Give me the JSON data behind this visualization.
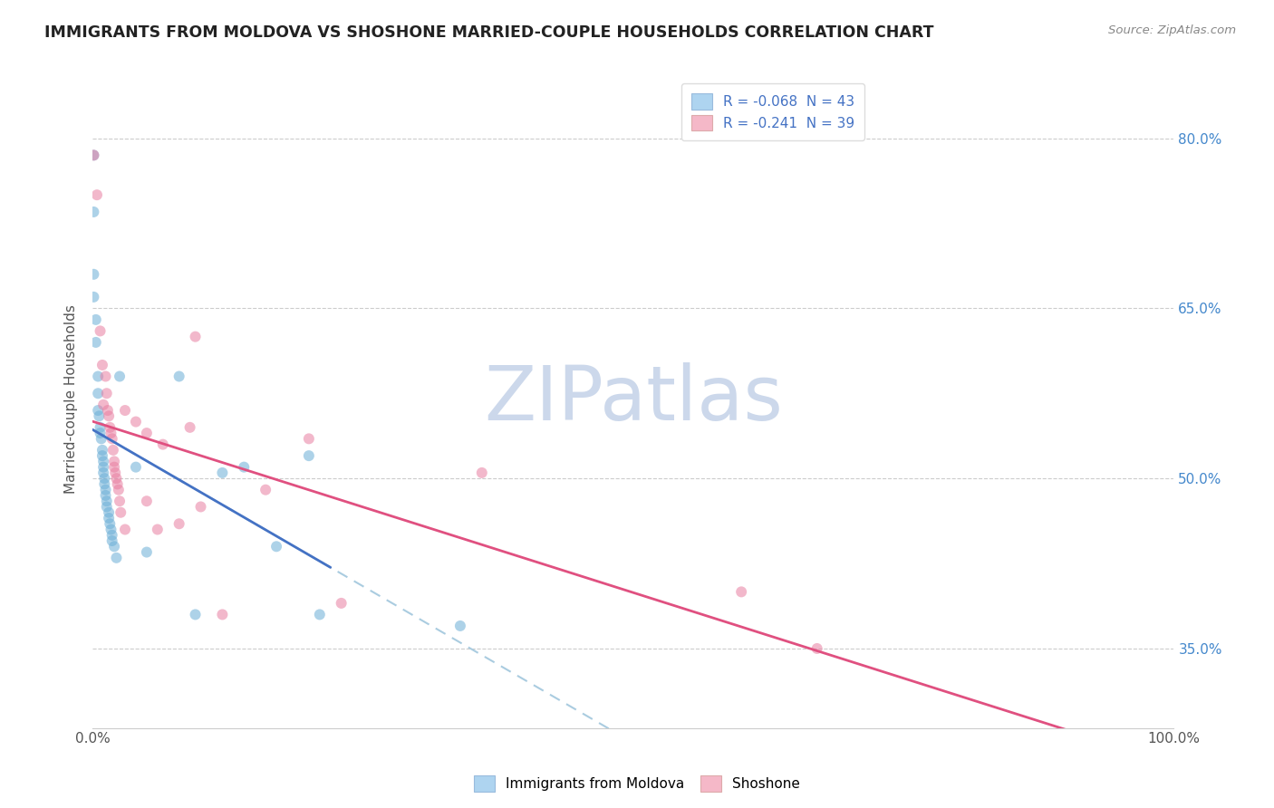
{
  "title": "IMMIGRANTS FROM MOLDOVA VS SHOSHONE MARRIED-COUPLE HOUSEHOLDS CORRELATION CHART",
  "source": "Source: ZipAtlas.com",
  "ylabel": "Married-couple Households",
  "xlim": [
    0,
    1.0
  ],
  "ylim": [
    0.28,
    0.86
  ],
  "x_tick_values": [
    0.0,
    1.0
  ],
  "x_tick_labels": [
    "0.0%",
    "100.0%"
  ],
  "y_tick_values": [
    0.35,
    0.5,
    0.65,
    0.8
  ],
  "y_tick_labels": [
    "35.0%",
    "50.0%",
    "65.0%",
    "80.0%"
  ],
  "watermark": "ZIPatlas",
  "legend_entries": [
    {
      "label": "R = -0.068  N = 43",
      "color": "#aed4f0"
    },
    {
      "label": "R = -0.241  N = 39",
      "color": "#f5b8c8"
    }
  ],
  "bottom_legend": [
    "Immigrants from Moldova",
    "Shoshone"
  ],
  "blue_scatter": [
    [
      0.001,
      0.785
    ],
    [
      0.001,
      0.735
    ],
    [
      0.001,
      0.68
    ],
    [
      0.001,
      0.66
    ],
    [
      0.003,
      0.64
    ],
    [
      0.003,
      0.62
    ],
    [
      0.005,
      0.59
    ],
    [
      0.005,
      0.575
    ],
    [
      0.005,
      0.56
    ],
    [
      0.006,
      0.555
    ],
    [
      0.007,
      0.545
    ],
    [
      0.007,
      0.54
    ],
    [
      0.008,
      0.535
    ],
    [
      0.009,
      0.525
    ],
    [
      0.009,
      0.52
    ],
    [
      0.01,
      0.515
    ],
    [
      0.01,
      0.51
    ],
    [
      0.01,
      0.505
    ],
    [
      0.011,
      0.5
    ],
    [
      0.011,
      0.495
    ],
    [
      0.012,
      0.49
    ],
    [
      0.012,
      0.485
    ],
    [
      0.013,
      0.48
    ],
    [
      0.013,
      0.475
    ],
    [
      0.015,
      0.47
    ],
    [
      0.015,
      0.465
    ],
    [
      0.016,
      0.46
    ],
    [
      0.017,
      0.455
    ],
    [
      0.018,
      0.45
    ],
    [
      0.018,
      0.445
    ],
    [
      0.02,
      0.44
    ],
    [
      0.022,
      0.43
    ],
    [
      0.025,
      0.59
    ],
    [
      0.04,
      0.51
    ],
    [
      0.05,
      0.435
    ],
    [
      0.08,
      0.59
    ],
    [
      0.095,
      0.38
    ],
    [
      0.12,
      0.505
    ],
    [
      0.14,
      0.51
    ],
    [
      0.17,
      0.44
    ],
    [
      0.2,
      0.52
    ],
    [
      0.21,
      0.38
    ],
    [
      0.34,
      0.37
    ]
  ],
  "pink_scatter": [
    [
      0.001,
      0.785
    ],
    [
      0.004,
      0.75
    ],
    [
      0.007,
      0.63
    ],
    [
      0.009,
      0.6
    ],
    [
      0.01,
      0.565
    ],
    [
      0.012,
      0.59
    ],
    [
      0.013,
      0.575
    ],
    [
      0.014,
      0.56
    ],
    [
      0.015,
      0.555
    ],
    [
      0.016,
      0.545
    ],
    [
      0.017,
      0.54
    ],
    [
      0.018,
      0.535
    ],
    [
      0.019,
      0.525
    ],
    [
      0.02,
      0.515
    ],
    [
      0.02,
      0.51
    ],
    [
      0.021,
      0.505
    ],
    [
      0.022,
      0.5
    ],
    [
      0.023,
      0.495
    ],
    [
      0.024,
      0.49
    ],
    [
      0.025,
      0.48
    ],
    [
      0.026,
      0.47
    ],
    [
      0.03,
      0.56
    ],
    [
      0.03,
      0.455
    ],
    [
      0.04,
      0.55
    ],
    [
      0.05,
      0.54
    ],
    [
      0.05,
      0.48
    ],
    [
      0.06,
      0.455
    ],
    [
      0.065,
      0.53
    ],
    [
      0.08,
      0.46
    ],
    [
      0.09,
      0.545
    ],
    [
      0.095,
      0.625
    ],
    [
      0.1,
      0.475
    ],
    [
      0.12,
      0.38
    ],
    [
      0.16,
      0.49
    ],
    [
      0.2,
      0.535
    ],
    [
      0.23,
      0.39
    ],
    [
      0.36,
      0.505
    ],
    [
      0.6,
      0.4
    ],
    [
      0.67,
      0.35
    ]
  ],
  "blue_color": "#6baed6",
  "pink_color": "#e87ea1",
  "blue_line_color": "#4472c4",
  "pink_line_color": "#e05080",
  "dashed_line_color": "#aacce0",
  "scatter_alpha": 0.55,
  "scatter_size": 75,
  "grid_color": "#cccccc",
  "bg_color": "#ffffff",
  "title_color": "#222222",
  "title_fontsize": 12.5,
  "axis_label_color": "#555555",
  "tick_color_right": "#4488cc",
  "watermark_color": "#ccd8eb",
  "watermark_fontsize": 60
}
